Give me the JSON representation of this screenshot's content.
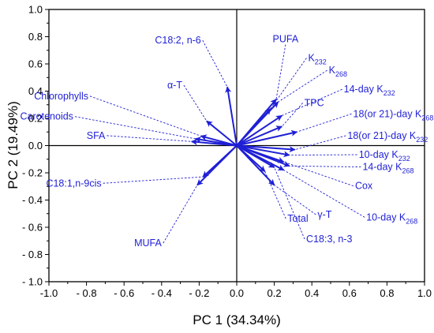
{
  "chart_data": {
    "type": "scatter",
    "subtype": "pca-biplot",
    "xlabel": "PC 1 (34.34%)",
    "ylabel": "PC 2 (19.49%)",
    "xlim": [
      -1.0,
      1.0
    ],
    "ylim": [
      -1.0,
      1.0
    ],
    "xticks": [
      "-1.0",
      "- 0.8",
      "- 0.6",
      "- 0.4",
      "- 0.2",
      "0.0",
      "0.2",
      "0.4",
      "0.6",
      "0.8",
      "1.0"
    ],
    "yticks": [
      "1.0",
      "0.8",
      "0.6",
      "0.4",
      "0.2",
      "0.0",
      "- 0.2",
      "- 0.4",
      "- 0.6",
      "- 0.8",
      "- 1.0"
    ],
    "grid": false,
    "arrow_color": "#1f1fd6",
    "axis_color": "#000000",
    "variables": [
      {
        "name": "C18:2, n-6",
        "base": "C18:2, n-6",
        "sub": "",
        "suffix": "",
        "x": -0.05,
        "y": 0.43,
        "lx": -0.19,
        "ly": 0.75
      },
      {
        "name": "α-T",
        "base": "α-T",
        "sub": "",
        "suffix": "",
        "x": -0.16,
        "y": 0.18,
        "lx": -0.29,
        "ly": 0.42
      },
      {
        "name": "Chlorophylls",
        "base": "Chlorophylls",
        "sub": "",
        "suffix": "",
        "x": -0.19,
        "y": 0.07,
        "lx": -0.79,
        "ly": 0.34
      },
      {
        "name": "Carotenoids",
        "base": "Carotenoids",
        "sub": "",
        "suffix": "",
        "x": -0.22,
        "y": 0.05,
        "lx": -0.87,
        "ly": 0.19
      },
      {
        "name": "SFA",
        "base": "SFA",
        "sub": "",
        "suffix": "",
        "x": -0.24,
        "y": 0.03,
        "lx": -0.7,
        "ly": 0.05
      },
      {
        "name": "C18:1,n-9cis",
        "base": "C18:1,n-9cis",
        "sub": "",
        "suffix": "",
        "x": -0.18,
        "y": -0.23,
        "lx": -0.72,
        "ly": -0.3
      },
      {
        "name": "MUFA",
        "base": "MUFA",
        "sub": "",
        "suffix": "",
        "x": -0.21,
        "y": -0.29,
        "lx": -0.4,
        "ly": -0.74
      },
      {
        "name": "PUFA",
        "base": "PUFA",
        "sub": "",
        "suffix": "",
        "x": 0.21,
        "y": 0.34,
        "lx": 0.26,
        "ly": 0.76
      },
      {
        "name": "K232",
        "base": "K",
        "sub": "232",
        "suffix": "",
        "x": 0.18,
        "y": 0.27,
        "lx": 0.38,
        "ly": 0.62
      },
      {
        "name": "K268",
        "base": "K",
        "sub": "268",
        "suffix": "",
        "x": 0.22,
        "y": 0.32,
        "lx": 0.49,
        "ly": 0.53
      },
      {
        "name": "14-day K232",
        "base": "14-day K",
        "sub": "232",
        "suffix": "",
        "x": 0.24,
        "y": 0.22,
        "lx": 0.57,
        "ly": 0.39
      },
      {
        "name": "TPC",
        "base": "TPC",
        "sub": "",
        "suffix": "",
        "x": 0.24,
        "y": 0.14,
        "lx": 0.36,
        "ly": 0.29
      },
      {
        "name": "18(or 21)-day K268",
        "base": "18(or 21)-day K",
        "sub": "268",
        "suffix": "",
        "x": 0.32,
        "y": 0.1,
        "lx": 0.62,
        "ly": 0.21
      },
      {
        "name": "18(or 21)-day K232",
        "base": "18(or 21)-day K",
        "sub": "232",
        "suffix": "",
        "x": 0.31,
        "y": -0.03,
        "lx": 0.59,
        "ly": 0.05
      },
      {
        "name": "10-day K232",
        "base": "10-day K",
        "sub": "232",
        "suffix": "",
        "x": 0.28,
        "y": -0.07,
        "lx": 0.65,
        "ly": -0.09
      },
      {
        "name": "14-day K268",
        "base": "14-day K",
        "sub": "268",
        "suffix": "",
        "x": 0.28,
        "y": -0.15,
        "lx": 0.67,
        "ly": -0.18
      },
      {
        "name": "Cox",
        "base": "Cox",
        "sub": "",
        "suffix": "",
        "x": 0.25,
        "y": -0.12,
        "lx": 0.63,
        "ly": -0.32
      },
      {
        "name": "10-day K268",
        "base": "10-day K",
        "sub": "268",
        "suffix": "",
        "x": 0.25,
        "y": -0.18,
        "lx": 0.69,
        "ly": -0.55
      },
      {
        "name": "γ-T",
        "base": "γ-T",
        "sub": "",
        "suffix": "",
        "x": 0.2,
        "y": -0.29,
        "lx": 0.43,
        "ly": -0.53
      },
      {
        "name": "Total",
        "base": "Total",
        "sub": "",
        "suffix": "",
        "x": 0.15,
        "y": -0.19,
        "lx": 0.27,
        "ly": -0.56
      },
      {
        "name": "C18:3, n-3",
        "base": "C18:3, n-3",
        "sub": "",
        "suffix": "",
        "x": 0.2,
        "y": -0.16,
        "lx": 0.37,
        "ly": -0.71
      }
    ]
  }
}
